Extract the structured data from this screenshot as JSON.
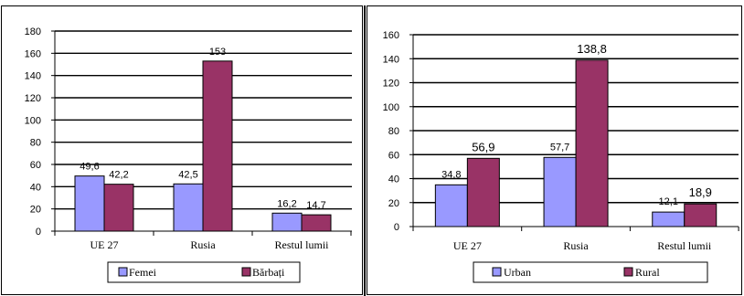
{
  "chart_data": [
    {
      "type": "bar",
      "categories": [
        "UE 27",
        "Rusia",
        "Restul lumii"
      ],
      "series": [
        {
          "name": "Femei",
          "values": [
            49.6,
            42.5,
            16.2
          ],
          "labels": [
            "49,6",
            "42,5",
            "16,2"
          ],
          "color": "#9999ff"
        },
        {
          "name": "Bărbați",
          "values": [
            42.2,
            153,
            14.7
          ],
          "labels": [
            "42,2",
            "153",
            "14,7"
          ],
          "color": "#993366"
        }
      ],
      "ylim": [
        0,
        180
      ],
      "yticks": [
        0,
        20,
        40,
        60,
        80,
        100,
        120,
        140,
        160,
        180
      ],
      "grid": true,
      "legend": "bottom"
    },
    {
      "type": "bar",
      "categories": [
        "UE 27",
        "Rusia",
        "Restul lumii"
      ],
      "series": [
        {
          "name": "Urban",
          "values": [
            34.8,
            57.7,
            12.1
          ],
          "labels": [
            "34,8",
            "57,7",
            "12,1"
          ],
          "color": "#9999ff"
        },
        {
          "name": "Rural",
          "values": [
            56.9,
            138.8,
            18.9
          ],
          "labels": [
            "56,9",
            "138,8",
            "18,9"
          ],
          "color": "#993366"
        }
      ],
      "ylim": [
        0,
        160
      ],
      "yticks": [
        0,
        20,
        40,
        60,
        80,
        100,
        120,
        140,
        160
      ],
      "grid": true,
      "legend": "bottom"
    }
  ]
}
